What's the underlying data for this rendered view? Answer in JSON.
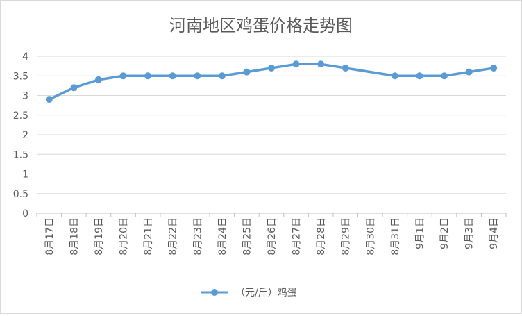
{
  "chart_data": {
    "type": "line",
    "title": "河南地区鸡蛋价格走势图",
    "xlabel": "",
    "ylabel": "",
    "categories": [
      "8月17日",
      "8月18日",
      "8月19日",
      "8月20日",
      "8月21日",
      "8月22日",
      "8月23日",
      "8月24日",
      "8月25日",
      "8月26日",
      "8月27日",
      "8月28日",
      "8月29日",
      "8月30日",
      "8月31日",
      "9月1日",
      "9月2日",
      "9月3日",
      "9月4日"
    ],
    "series": [
      {
        "name": "（元/斤）鸡蛋",
        "color": "#5b9bd5",
        "values": [
          2.9,
          3.2,
          3.4,
          3.5,
          3.5,
          3.5,
          3.5,
          3.5,
          3.6,
          3.7,
          3.8,
          3.8,
          3.7,
          null,
          3.5,
          3.5,
          3.5,
          3.6,
          3.7
        ]
      }
    ],
    "ylim": [
      0,
      4
    ],
    "yticks": [
      0,
      0.5,
      1,
      1.5,
      2,
      2.5,
      3,
      3.5,
      4
    ],
    "grid": true,
    "legend_position": "bottom"
  }
}
